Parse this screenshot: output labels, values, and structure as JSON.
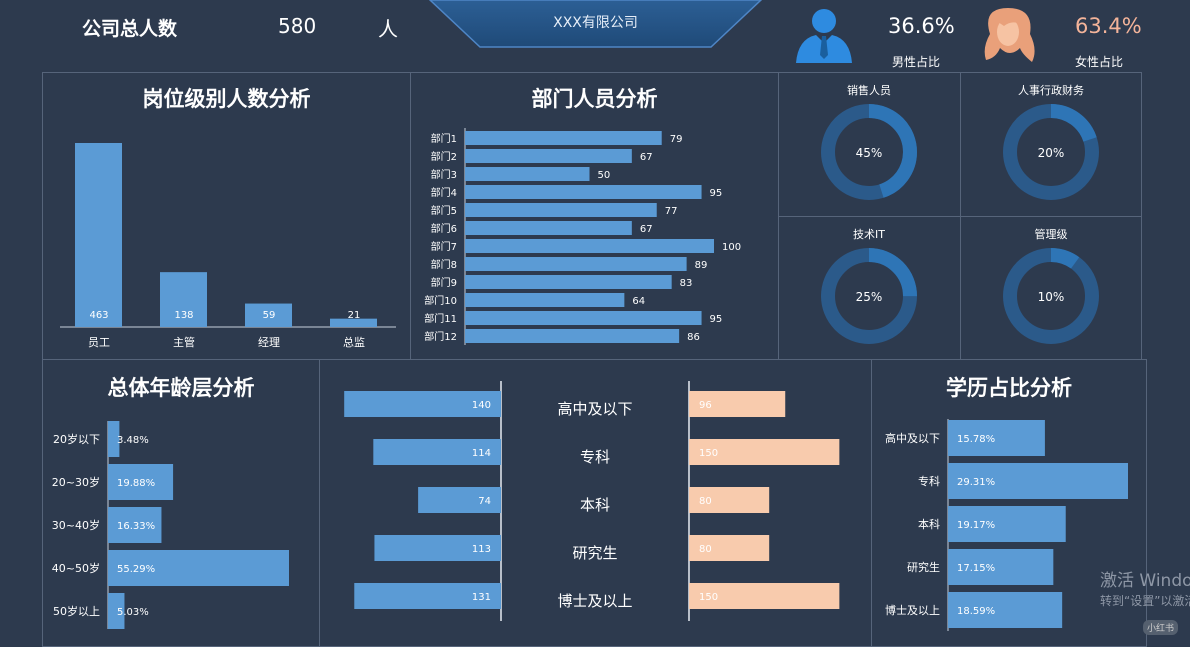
{
  "header": {
    "total_label": "公司总人数",
    "total_value": "580",
    "total_unit": "人",
    "company": "XXX有限公司",
    "male_pct": "36.6%",
    "male_label": "男性占比",
    "female_pct": "63.4%",
    "female_label": "女性占比"
  },
  "watermark": {
    "line1": "激活 Windows",
    "line2": "转到“设置”以激活",
    "badge": "小红书"
  },
  "colors": {
    "bg": "#2d3a4e",
    "bar": "#5b9bd5",
    "female": "#f8cbad",
    "ring": "#2b5a8a",
    "ring_fill": "#2e75b6"
  },
  "chart_data": [
    {
      "id": "level",
      "type": "bar",
      "title": "岗位级别人数分析",
      "categories": [
        "员工",
        "主管",
        "经理",
        "总监"
      ],
      "values": [
        463,
        138,
        59,
        21
      ]
    },
    {
      "id": "dept",
      "type": "bar",
      "orientation": "horizontal",
      "title": "部门人员分析",
      "categories": [
        "部门1",
        "部门2",
        "部门3",
        "部门4",
        "部门5",
        "部门6",
        "部门7",
        "部门8",
        "部门9",
        "部门10",
        "部门11",
        "部门12"
      ],
      "values": [
        79,
        67,
        50,
        95,
        77,
        67,
        100,
        89,
        83,
        64,
        95,
        86
      ]
    },
    {
      "id": "donuts",
      "type": "pie",
      "items": [
        {
          "label": "销售人员",
          "value": 45,
          "text": "45%"
        },
        {
          "label": "人事行政财务",
          "value": 20,
          "text": "20%"
        },
        {
          "label": "技术IT",
          "value": 25,
          "text": "25%"
        },
        {
          "label": "管理级",
          "value": 10,
          "text": "10%"
        }
      ]
    },
    {
      "id": "age",
      "type": "bar",
      "orientation": "horizontal",
      "title": "总体年龄层分析",
      "categories": [
        "20岁以下",
        "20~30岁",
        "30~40岁",
        "40~50岁",
        "50岁以上"
      ],
      "values": [
        3.48,
        19.88,
        16.33,
        55.29,
        5.03
      ],
      "labels": [
        "3.48%",
        "19.88%",
        "16.33%",
        "55.29%",
        "5.03%"
      ]
    },
    {
      "id": "edu_gender",
      "type": "bar",
      "orientation": "horizontal",
      "categories": [
        "高中及以下",
        "专科",
        "本科",
        "研究生",
        "博士及以上"
      ],
      "series": [
        {
          "values": [
            140,
            114,
            74,
            113,
            131
          ]
        },
        {
          "values": [
            96,
            150,
            80,
            80,
            150
          ]
        }
      ]
    },
    {
      "id": "edu",
      "type": "bar",
      "orientation": "horizontal",
      "title": "学历占比分析",
      "categories": [
        "高中及以下",
        "专科",
        "本科",
        "研究生",
        "博士及以上"
      ],
      "values": [
        15.78,
        29.31,
        19.17,
        17.15,
        18.59
      ],
      "labels": [
        "15.78%",
        "29.31%",
        "19.17%",
        "17.15%",
        "18.59%"
      ]
    }
  ]
}
